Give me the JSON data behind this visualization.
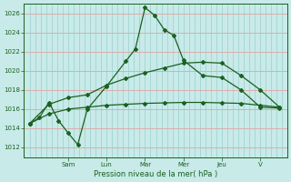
{
  "background_color": "#c8eae8",
  "grid_color_h": "#e8a0a0",
  "grid_color_v": "#90c8c8",
  "line_color": "#1a6020",
  "ylim": [
    1011.0,
    1027.0
  ],
  "yticks": [
    1012,
    1014,
    1016,
    1018,
    1020,
    1022,
    1024,
    1026
  ],
  "xlabel": "Pression niveau de la mer( hPa )",
  "day_labels": [
    "Sam",
    "Lun",
    "Mar",
    "Mer",
    "Jeu",
    "V"
  ],
  "day_tick_x": [
    1,
    2,
    3,
    4,
    5,
    6
  ],
  "num_vcols": 7,
  "series1_x": [
    0.0,
    0.25,
    0.5,
    0.75,
    1.0,
    1.25,
    1.5,
    2.0,
    2.5,
    2.75,
    3.0,
    3.25,
    3.5,
    3.75,
    4.0,
    4.5,
    5.0,
    5.5,
    6.0,
    6.5
  ],
  "series1_y": [
    1014.5,
    1015.1,
    1016.7,
    1014.8,
    1013.5,
    1012.3,
    1016.0,
    1018.4,
    1021.0,
    1022.3,
    1026.6,
    1025.8,
    1024.3,
    1023.7,
    1021.1,
    1019.5,
    1019.3,
    1018.0,
    1016.2,
    1016.1
  ],
  "series2_x": [
    0.0,
    0.5,
    1.0,
    1.5,
    2.0,
    2.5,
    3.0,
    3.5,
    4.0,
    4.5,
    5.0,
    5.5,
    6.0,
    6.5
  ],
  "series2_y": [
    1014.5,
    1016.5,
    1017.2,
    1017.5,
    1018.5,
    1019.2,
    1019.8,
    1020.3,
    1020.8,
    1020.9,
    1020.8,
    1019.5,
    1018.0,
    1016.2
  ],
  "series3_x": [
    0.0,
    0.5,
    1.0,
    1.5,
    2.0,
    2.5,
    3.0,
    3.5,
    4.0,
    4.5,
    5.0,
    5.5,
    6.0,
    6.5
  ],
  "series3_y": [
    1014.5,
    1015.5,
    1016.0,
    1016.2,
    1016.4,
    1016.5,
    1016.6,
    1016.65,
    1016.7,
    1016.7,
    1016.65,
    1016.6,
    1016.4,
    1016.2
  ],
  "xlim": [
    -0.15,
    6.7
  ]
}
